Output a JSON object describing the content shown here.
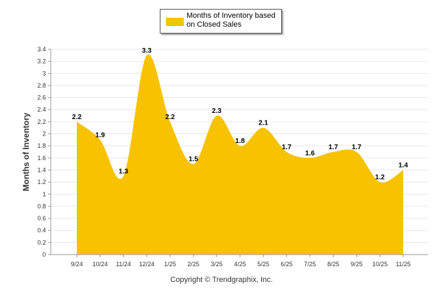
{
  "chart_data": {
    "type": "area",
    "categories": [
      "9/24",
      "10/24",
      "11/24",
      "12/24",
      "1/25",
      "2/25",
      "3/25",
      "4/25",
      "5/25",
      "6/25",
      "7/25",
      "8/25",
      "9/25",
      "10/25",
      "11/25"
    ],
    "series": [
      {
        "name": "Months of Inventory based on Closed Sales",
        "values": [
          2.2,
          1.9,
          1.3,
          3.3,
          2.2,
          1.5,
          2.3,
          1.8,
          2.1,
          1.7,
          1.6,
          1.7,
          1.7,
          1.2,
          1.4
        ]
      }
    ],
    "data_labels": [
      "2.2",
      "1.9",
      "1.3",
      "3.3",
      "2.2",
      "1.5",
      "2.3",
      "1.8",
      "2.1",
      "1.7",
      "1.6",
      "1.7",
      "1.7",
      "1.2",
      "1.4"
    ],
    "ylabel": "Months of Inventory",
    "xlabel": "",
    "ylim": [
      0,
      3.4
    ],
    "yticks": [
      "0",
      "0.2",
      "0.4",
      "0.6",
      "0.8",
      "1",
      "1.2",
      "1.4",
      "1.6",
      "1.8",
      "2",
      "2.2",
      "2.4",
      "2.6",
      "2.8",
      "3",
      "3.2",
      "3.4"
    ],
    "grid": true,
    "legend_position": "top-center",
    "colors": {
      "fill": "#F7C200",
      "grid": "#e6e6e6",
      "axis": "#999999"
    }
  },
  "legend": {
    "label_line1": "Months of Inventory based",
    "label_line2": "on Closed Sales"
  },
  "footer": {
    "copyright": "Copyright © Trendgraphix, Inc."
  }
}
